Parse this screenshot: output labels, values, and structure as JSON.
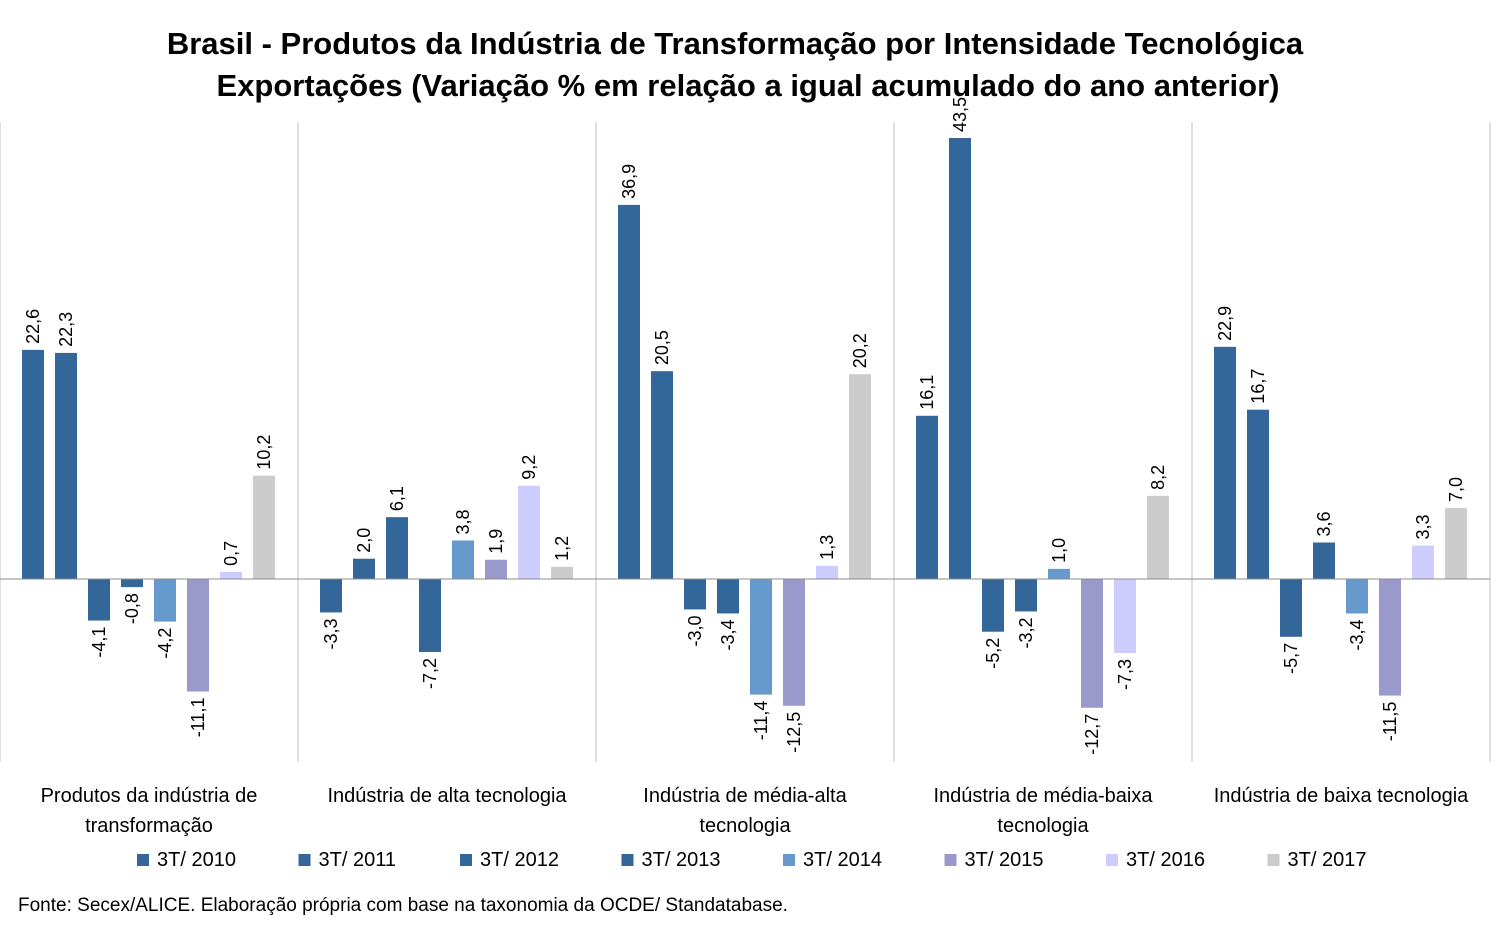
{
  "chart_data": {
    "type": "bar",
    "title": "Brasil - Produtos da Indústria de Transformação por Intensidade Tecnológica",
    "subtitle": "Exportações (Variação % em relação a igual acumulado do ano anterior)",
    "categories": [
      [
        "Produtos da indústria de",
        "transformação"
      ],
      [
        "Indústria de alta tecnologia"
      ],
      [
        "Indústria de média-alta",
        "tecnologia"
      ],
      [
        "Indústria de média-baixa",
        "tecnologia"
      ],
      [
        "Indústria de baixa tecnologia"
      ]
    ],
    "series": [
      {
        "name": "3T/ 2010",
        "color": "#336699",
        "values": [
          22.6,
          -3.3,
          36.9,
          16.1,
          22.9
        ]
      },
      {
        "name": "3T/ 2011",
        "color": "#336699",
        "values": [
          22.3,
          2.0,
          20.5,
          43.5,
          16.7
        ]
      },
      {
        "name": "3T/ 2012",
        "color": "#336699",
        "values": [
          -4.1,
          6.1,
          -3.0,
          -5.2,
          -5.7
        ]
      },
      {
        "name": "3T/ 2013",
        "color": "#336699",
        "values": [
          -0.8,
          -7.2,
          -3.4,
          -3.2,
          3.6
        ]
      },
      {
        "name": "3T/ 2014",
        "color": "#6699CC",
        "values": [
          -4.2,
          3.8,
          -11.4,
          1.0,
          -3.4
        ]
      },
      {
        "name": "3T/ 2015",
        "color": "#9999CC",
        "values": [
          -11.1,
          1.9,
          -12.5,
          -12.7,
          -11.5
        ]
      },
      {
        "name": "3T/ 2016",
        "color": "#CCCCFF",
        "values": [
          0.7,
          9.2,
          1.3,
          -7.3,
          3.3
        ]
      },
      {
        "name": "3T/ 2017",
        "color": "#CCCCCC",
        "values": [
          10.2,
          1.2,
          20.2,
          8.2,
          7.0
        ]
      }
    ],
    "value_labels": [
      [
        "22,6",
        "-3,3",
        "36,9",
        "16,1",
        "22,9"
      ],
      [
        "22,3",
        "2,0",
        "20,5",
        "43,5",
        "16,7"
      ],
      [
        "-4,1",
        "6,1",
        "-3,0",
        "-5,2",
        "-5,7"
      ],
      [
        "-0,8",
        "-7,2",
        "-3,4",
        "-3,2",
        "3,6"
      ],
      [
        "-4,2",
        "3,8",
        "-11,4",
        "1,0",
        "-3,4"
      ],
      [
        "-11,1",
        "1,9",
        "-12,5",
        "-12,7",
        "-11,5"
      ],
      [
        "0,7",
        "9,2",
        "1,3",
        "-7,3",
        "3,3"
      ],
      [
        "10,2",
        "1,2",
        "20,2",
        "8,2",
        "7,0"
      ]
    ],
    "ylim": [
      -18,
      45.5
    ],
    "grid": false,
    "legend_position": "bottom"
  },
  "source_note": "Fonte: Secex/ALICE. Elaboração própria com base na taxonomia da OCDE/ Standatabase."
}
